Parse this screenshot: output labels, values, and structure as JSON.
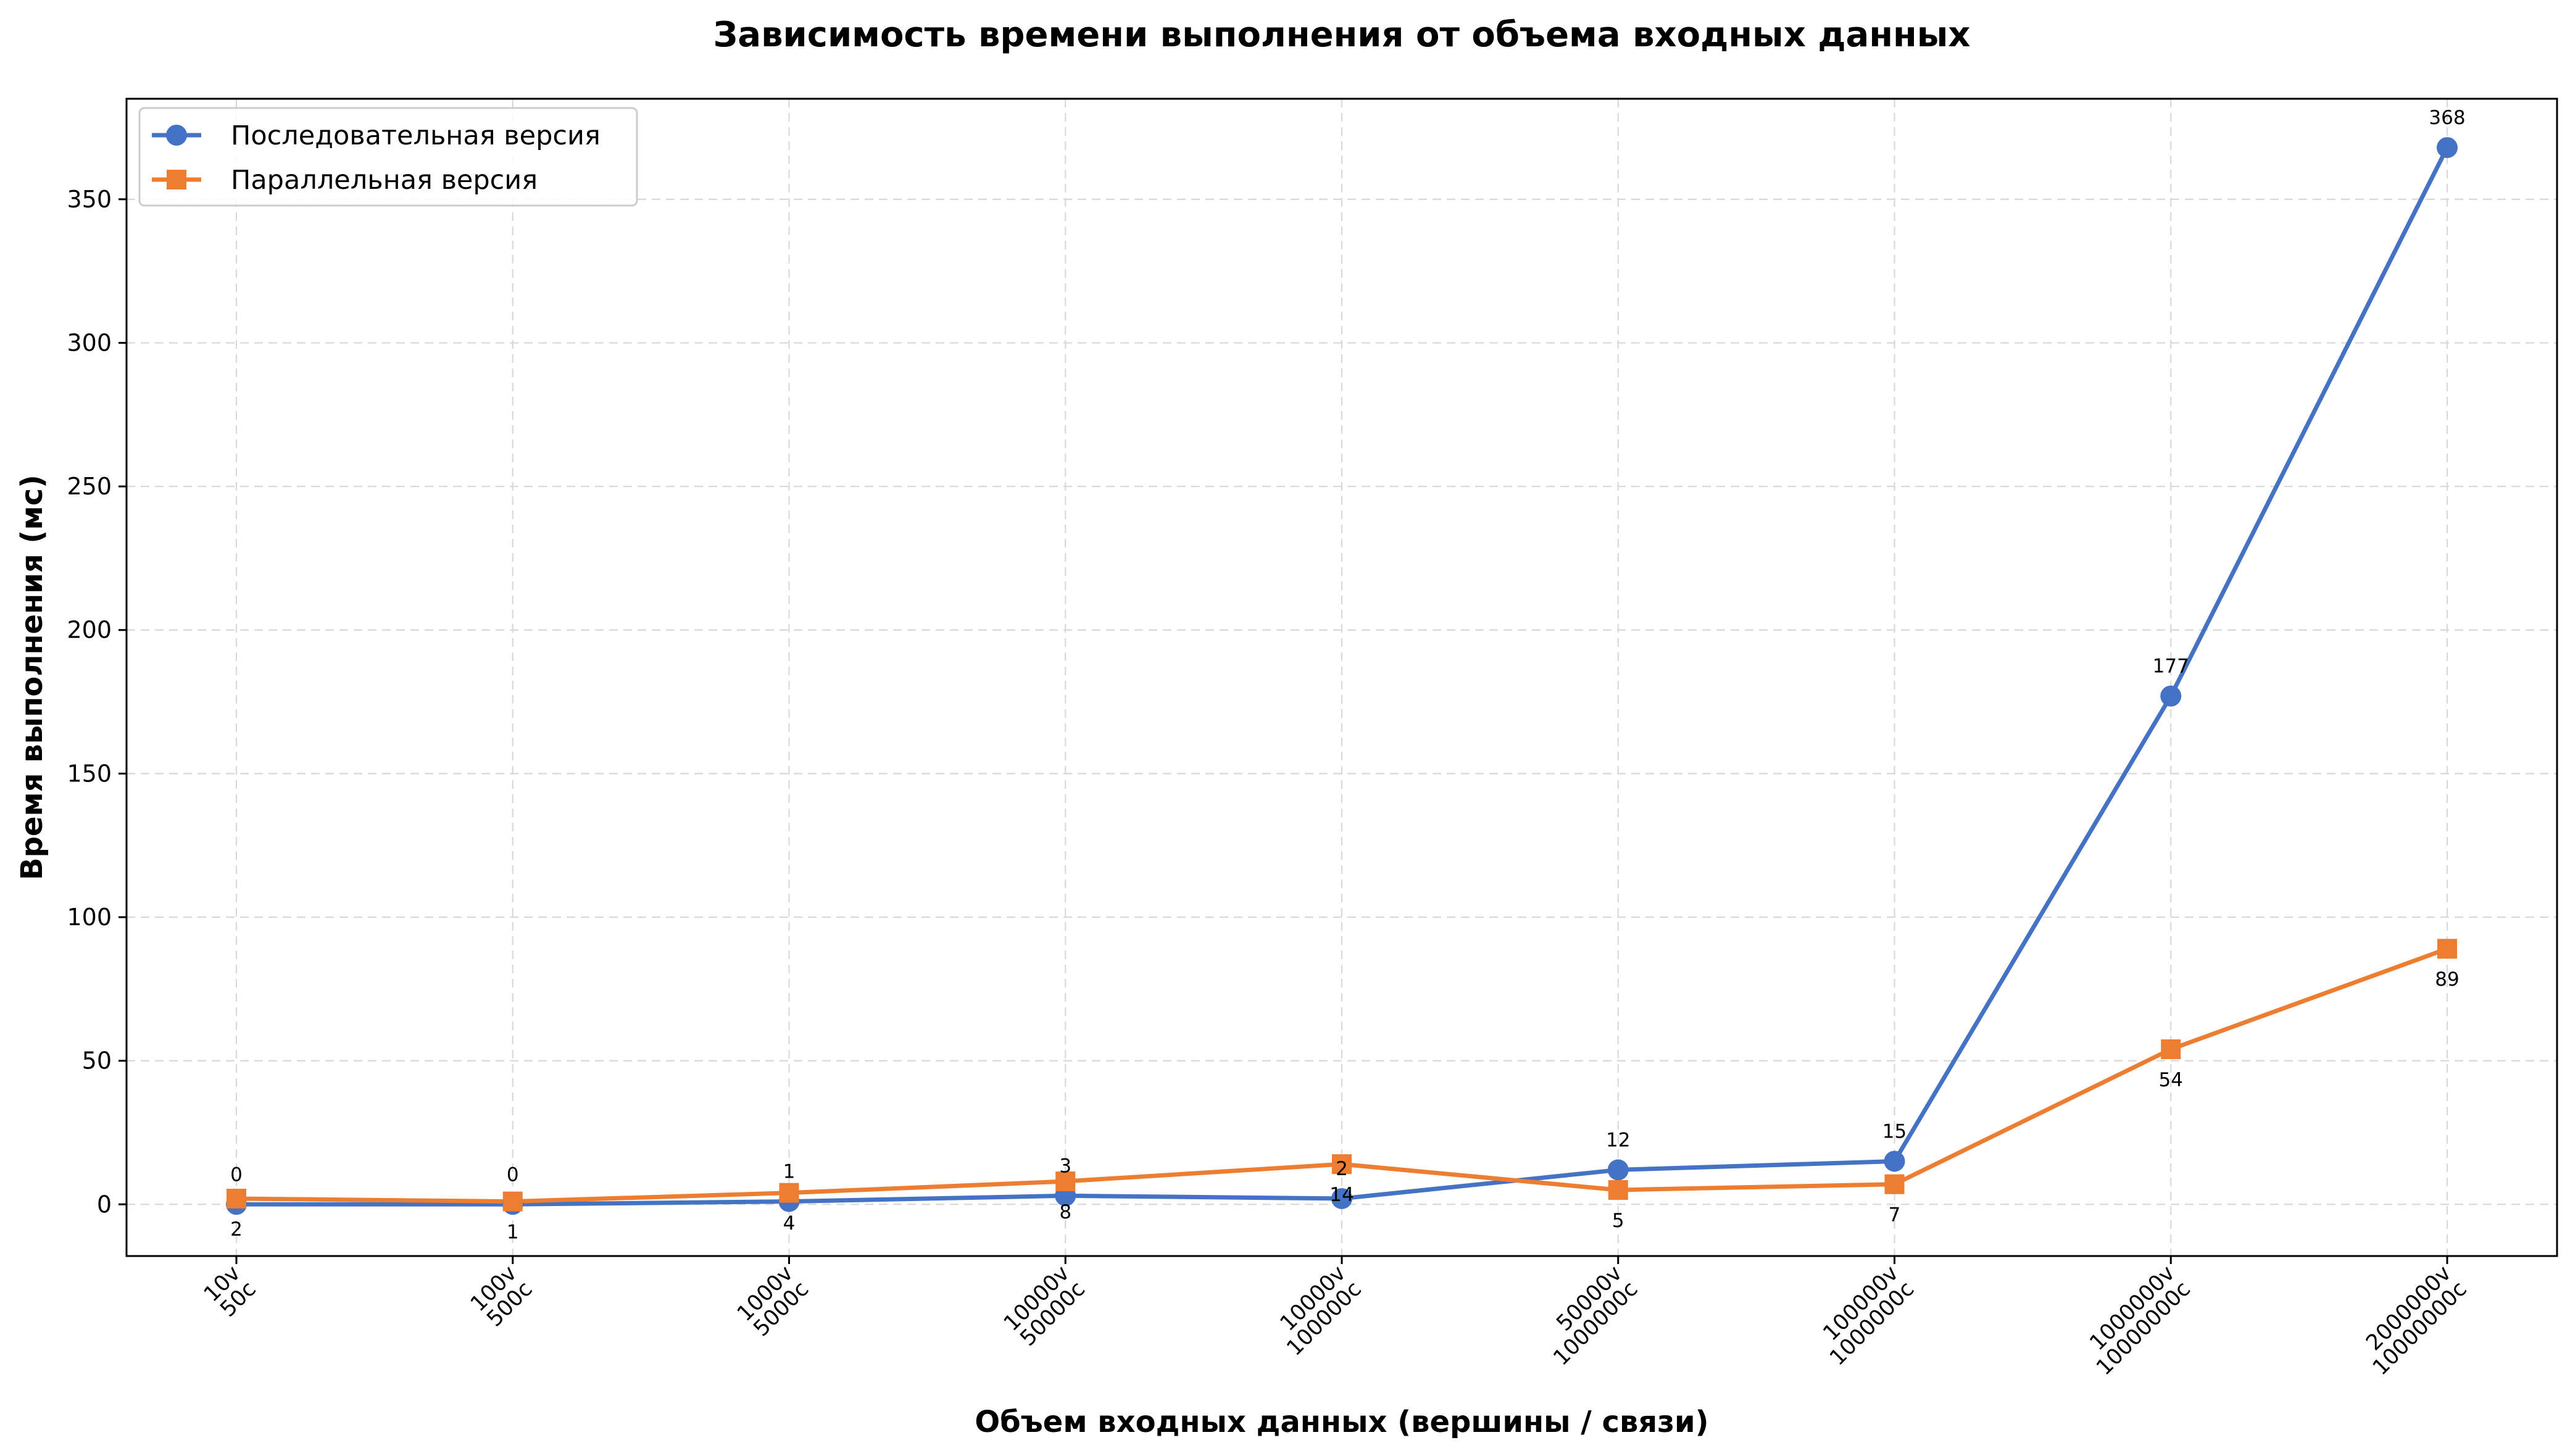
{
  "chart_data": {
    "type": "line",
    "title": "Зависимость времени выполнения от объема входных данных",
    "xlabel": "Объем входных данных (вершины / связи)",
    "ylabel": "Время выполнения (мс)",
    "categories": [
      [
        "10v",
        "50c"
      ],
      [
        "100v",
        "500c"
      ],
      [
        "1000v",
        "5000c"
      ],
      [
        "10000v",
        "50000c"
      ],
      [
        "10000v",
        "100000c"
      ],
      [
        "50000v",
        "1000000c"
      ],
      [
        "100000v",
        "1000000c"
      ],
      [
        "1000000v",
        "10000000c"
      ],
      [
        "2000000v",
        "10000000c"
      ]
    ],
    "ylim": [
      -18,
      385
    ],
    "yticks": [
      0,
      50,
      100,
      150,
      200,
      250,
      300,
      350
    ],
    "grid": true,
    "legend_position": "top-left",
    "series": [
      {
        "name": "Последовательная версия",
        "color": "#4472c4",
        "marker": "circle",
        "values": [
          0,
          0,
          1,
          3,
          2,
          12,
          15,
          177,
          368
        ],
        "labels": [
          "0",
          "0",
          "1",
          "3",
          "2",
          "12",
          "15",
          "177",
          "368"
        ],
        "label_position": "above"
      },
      {
        "name": "Параллельная версия",
        "color": "#ed7d31",
        "marker": "square",
        "values": [
          2,
          1,
          4,
          8,
          14,
          5,
          7,
          54,
          89
        ],
        "labels": [
          "2",
          "1",
          "4",
          "8",
          "14",
          "5",
          "7",
          "54",
          "89"
        ],
        "label_position": "below"
      }
    ]
  }
}
